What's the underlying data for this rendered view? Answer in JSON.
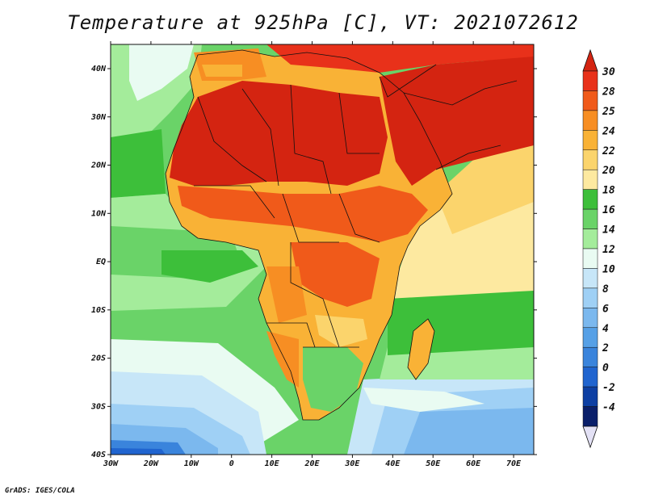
{
  "title": "Temperature at 925hPa [C], VT: 2021072612",
  "credit": "GrADS: IGES/COLA",
  "map": {
    "region": "Africa",
    "lon_range": [
      -30,
      75
    ],
    "lat_range": [
      -40,
      45
    ],
    "lon_ticks": [
      "30W",
      "20W",
      "10W",
      "0",
      "10E",
      "20E",
      "30E",
      "40E",
      "50E",
      "60E",
      "70E"
    ],
    "lat_ticks": [
      "40N",
      "30N",
      "20N",
      "10N",
      "EQ",
      "10S",
      "20S",
      "30S",
      "40S"
    ]
  },
  "colorbar": {
    "labels": [
      "30",
      "28",
      "25",
      "24",
      "22",
      "20",
      "18",
      "16",
      "14",
      "12",
      "10",
      "8",
      "6",
      "4",
      "2",
      "0",
      "-2",
      "-4"
    ],
    "colors": [
      "#e8311a",
      "#f05a1a",
      "#f78e23",
      "#f9b236",
      "#fbd46c",
      "#fde9a0",
      "#3dbf3a",
      "#6ad368",
      "#a4ec9b",
      "#e9fbf2",
      "#c7e6f8",
      "#9fd0f5",
      "#7bb8ee",
      "#56a0e6",
      "#3a84dc",
      "#2064cf",
      "#0d3fa3",
      "#0a1f6a"
    ],
    "top_color": "#d42411",
    "bottom_color": "#e3e1f5"
  }
}
